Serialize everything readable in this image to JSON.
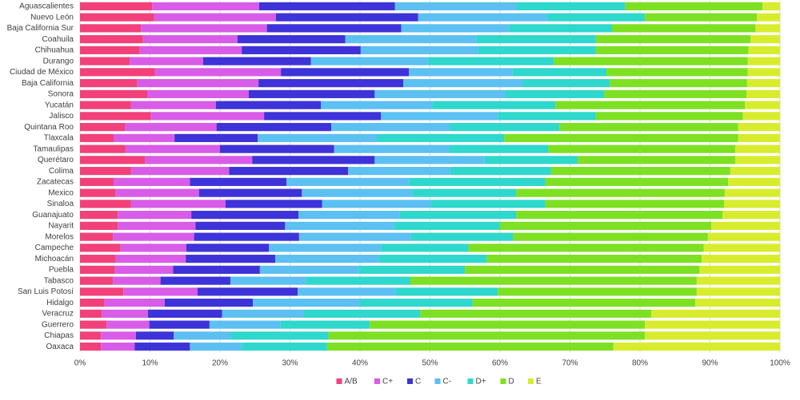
{
  "chart_data": {
    "type": "bar",
    "horizontal": true,
    "stacked": true,
    "grid": true,
    "categories": [
      "Aguascalientes",
      "Nuevo León",
      "Baja California Sur",
      "Coahuila",
      "Chihuahua",
      "Durango",
      "Ciudad de México",
      "Baja California",
      "Sonora",
      "Yucatán",
      "Jalisco",
      "Quintana Roo",
      "Tlaxcala",
      "Tamaulipas",
      "Querétaro",
      "Colima",
      "Zacatecas",
      "Mexico",
      "Sinaloa",
      "Guanajuato",
      "Nayarit",
      "Morelos",
      "Campeche",
      "Michoacán",
      "Puebla",
      "Tabasco",
      "San Luis Potosí",
      "Hidalgo",
      "Veracruz",
      "Guerrero",
      "Chiapas",
      "Oaxaca"
    ],
    "series": [
      {
        "name": "A/B",
        "color": "#f2407a",
        "values": [
          10.3,
          10.6,
          8.7,
          9.0,
          8.5,
          7.1,
          10.7,
          8.2,
          9.6,
          7.3,
          10.1,
          6.4,
          4.8,
          6.5,
          9.3,
          7.3,
          4.8,
          5.1,
          7.3,
          5.4,
          5.4,
          4.7,
          5.8,
          5.1,
          5.0,
          4.7,
          6.2,
          3.5,
          3.1,
          3.8,
          3.0,
          3.0
        ]
      },
      {
        "name": "C+",
        "color": "#d85ce8",
        "values": [
          15.3,
          17.4,
          18.0,
          13.5,
          14.6,
          10.5,
          18.0,
          17.3,
          14.5,
          12.1,
          16.2,
          13.1,
          8.7,
          13.5,
          15.3,
          14.0,
          10.9,
          11.9,
          13.5,
          10.5,
          11.1,
          11.6,
          9.4,
          10.0,
          8.3,
          6.8,
          10.6,
          8.6,
          6.6,
          6.1,
          5.0,
          4.8
        ]
      },
      {
        "name": "C",
        "color": "#3d33d8",
        "values": [
          19.4,
          20.3,
          19.2,
          15.4,
          17.0,
          15.4,
          18.3,
          20.7,
          18.0,
          15.0,
          16.7,
          16.4,
          11.9,
          16.3,
          17.5,
          17.0,
          13.8,
          14.7,
          13.8,
          15.3,
          12.8,
          15.0,
          11.8,
          12.8,
          12.4,
          10.0,
          14.3,
          12.6,
          10.6,
          8.6,
          5.4,
          7.9
        ]
      },
      {
        "name": "C-",
        "color": "#5cc0f2",
        "values": [
          17.4,
          18.4,
          15.4,
          18.7,
          16.8,
          16.7,
          14.8,
          17.0,
          18.7,
          15.9,
          16.7,
          16.9,
          17.0,
          16.5,
          15.7,
          14.6,
          17.5,
          15.8,
          15.5,
          14.5,
          15.6,
          16.0,
          16.0,
          14.8,
          14.1,
          10.8,
          14.0,
          15.3,
          11.7,
          10.1,
          8.2,
          7.4
        ]
      },
      {
        "name": "D+",
        "color": "#2ed8cc",
        "values": [
          15.5,
          14.0,
          14.7,
          17.1,
          16.8,
          18.0,
          13.4,
          12.5,
          14.1,
          17.6,
          14.0,
          15.7,
          18.2,
          14.1,
          13.3,
          14.4,
          19.5,
          14.8,
          16.4,
          16.6,
          15.1,
          14.6,
          12.5,
          15.4,
          15.2,
          14.9,
          14.6,
          16.1,
          16.6,
          12.8,
          13.9,
          12.2
        ]
      },
      {
        "name": "D",
        "color": "#7ee022",
        "values": [
          19.6,
          16.0,
          20.5,
          22.1,
          21.8,
          27.7,
          20.2,
          19.6,
          20.3,
          27.1,
          21.0,
          25.5,
          33.4,
          26.7,
          22.5,
          25.6,
          26.1,
          29.8,
          25.5,
          29.5,
          30.2,
          27.8,
          33.6,
          30.7,
          33.5,
          40.9,
          28.4,
          31.8,
          33.0,
          39.3,
          45.2,
          40.9
        ]
      },
      {
        "name": "E",
        "color": "#d8ec2e",
        "values": [
          2.5,
          3.3,
          3.5,
          4.2,
          4.5,
          4.6,
          4.6,
          4.7,
          4.8,
          5.0,
          5.3,
          6.0,
          6.0,
          6.4,
          6.4,
          7.1,
          7.4,
          7.9,
          8.0,
          8.2,
          9.8,
          10.3,
          10.9,
          11.2,
          11.5,
          11.9,
          11.9,
          12.1,
          18.4,
          19.3,
          19.3,
          23.8
        ]
      }
    ],
    "xlim": [
      0,
      100
    ],
    "xticks": [
      {
        "value": 0,
        "label": "0%"
      },
      {
        "value": 10,
        "label": "10%"
      },
      {
        "value": 20,
        "label": "20%"
      },
      {
        "value": 30,
        "label": "30%"
      },
      {
        "value": 40,
        "label": "40%"
      },
      {
        "value": 50,
        "label": "50%"
      },
      {
        "value": 60,
        "label": "60%"
      },
      {
        "value": 70,
        "label": "70%"
      },
      {
        "value": 80,
        "label": "80%"
      },
      {
        "value": 90,
        "label": "90%"
      },
      {
        "value": 100,
        "label": "100%"
      }
    ]
  }
}
